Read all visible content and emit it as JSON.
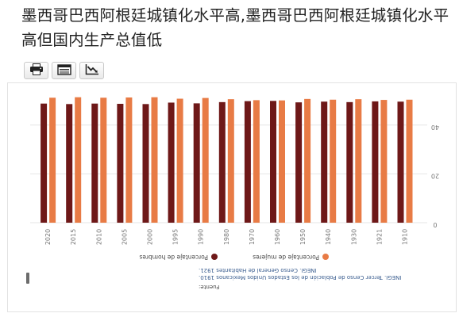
{
  "headline": "墨西哥巴西阿根廷城镇化水平高,墨西哥巴西阿根廷城镇化水平高但国内生产总值低",
  "toolbar": [
    {
      "name": "print-icon"
    },
    {
      "name": "table-icon"
    },
    {
      "name": "chart-icon"
    }
  ],
  "chart_data": {
    "type": "bar",
    "orientation": "rotated-180",
    "categories": [
      "1910",
      "1921",
      "1930",
      "1940",
      "1950",
      "1960",
      "1970",
      "1980",
      "1990",
      "1995",
      "2000",
      "2005",
      "2010",
      "2015",
      "2020"
    ],
    "series": [
      {
        "name": "Porcentaje de hombres",
        "color": "#6e1818",
        "values": [
          49.6,
          49.7,
          49.4,
          49.6,
          49.3,
          49.9,
          49.8,
          49.4,
          48.9,
          49.2,
          48.6,
          48.7,
          48.8,
          48.6,
          48.8
        ]
      },
      {
        "name": "Porcentaje de mujeres",
        "color": "#e87b45",
        "values": [
          50.4,
          50.3,
          50.6,
          50.4,
          50.7,
          50.1,
          50.2,
          50.6,
          51.1,
          50.8,
          51.4,
          51.3,
          51.2,
          51.4,
          51.2
        ]
      }
    ],
    "y_ticks": [
      "0",
      "20",
      "40"
    ],
    "ylim": [
      0,
      60
    ],
    "legend_position": "bottom",
    "colors": {
      "men": "#6e1818",
      "women": "#e87b45",
      "grid": "#e6e6e6"
    }
  },
  "source": {
    "label": "Fuente:",
    "lines": [
      "INEGI. Tercer Censo de Población de los Estados Unidos Mexicanos 1910.",
      "INEGI. Censo General de Habitantes 1921."
    ]
  }
}
